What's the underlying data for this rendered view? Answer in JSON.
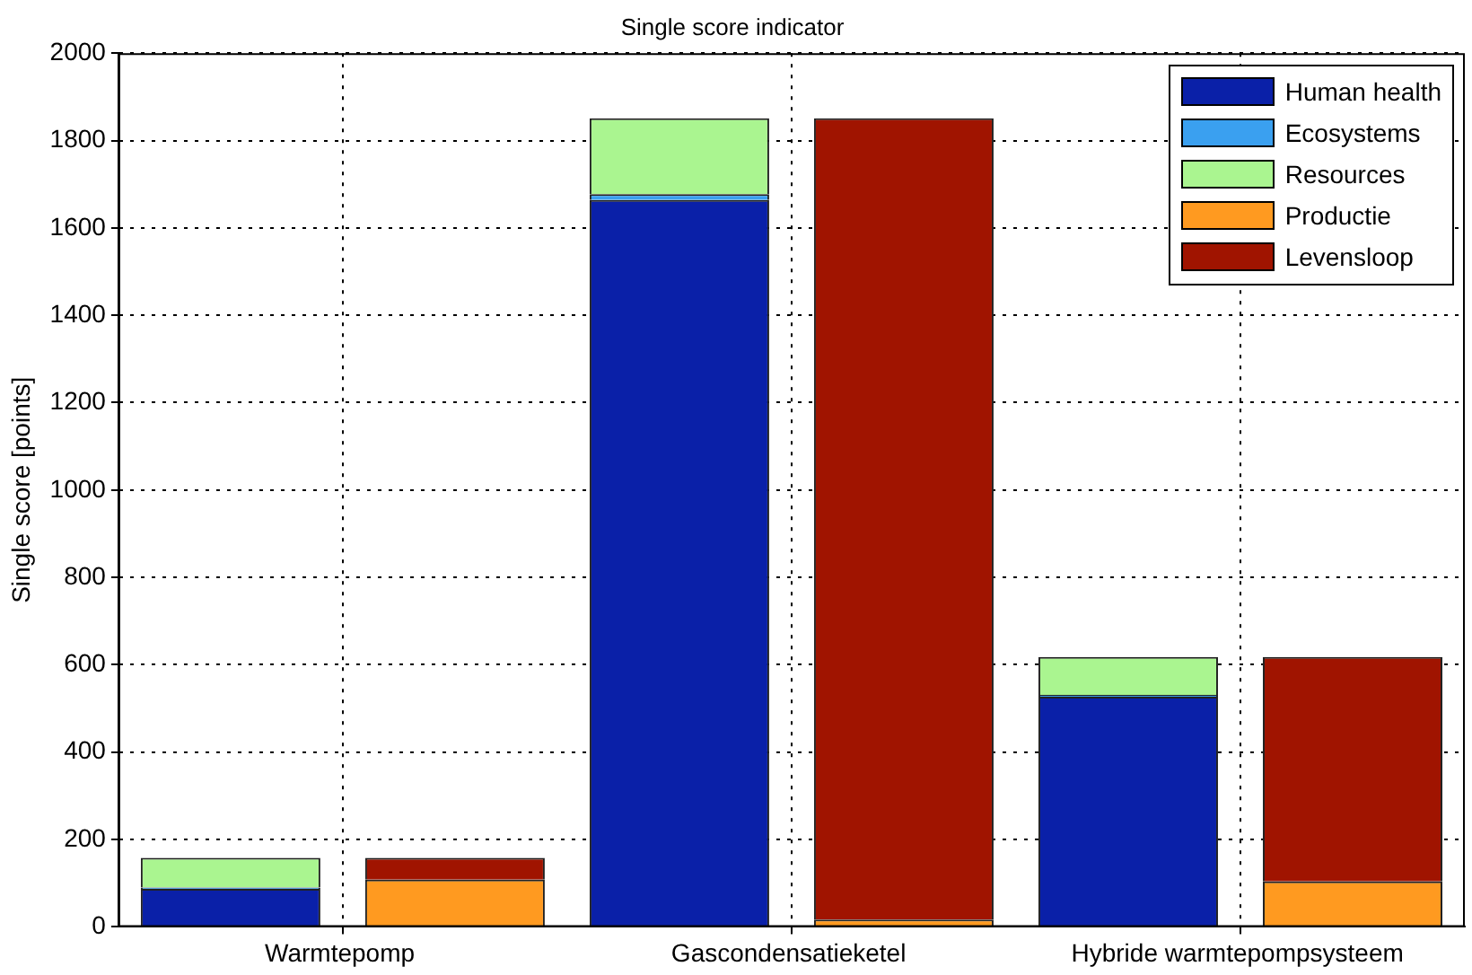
{
  "chart_data": {
    "type": "bar",
    "stacked": true,
    "title": "Single score indicator",
    "ylabel": "Single score [points]",
    "categories": [
      "Warmtepomp",
      null,
      "Gascondensatieketel",
      null,
      "Hybride warmtepompsysteem",
      null
    ],
    "ylim": [
      0,
      2000
    ],
    "yticks": [
      0,
      200,
      400,
      600,
      800,
      1000,
      1200,
      1400,
      1600,
      1800,
      2000
    ],
    "grid": true,
    "legend": "top right",
    "line_style": "dotted",
    "series": [
      {
        "name": "Human health",
        "color": "#0a20a8",
        "values": [
          87,
          null,
          1664,
          null,
          527,
          null
        ]
      },
      {
        "name": "Ecosystems",
        "color": "#3aa0f0",
        "values": [
          3,
          null,
          13,
          null,
          4,
          null
        ]
      },
      {
        "name": "Resources",
        "color": "#aaf590",
        "values": [
          68,
          null,
          174,
          null,
          87,
          null
        ]
      },
      {
        "name": "Productie",
        "color": "#ff9a20",
        "values": [
          null,
          108,
          null,
          17,
          null,
          104
        ]
      },
      {
        "name": "Levensloop",
        "color": "#a01400",
        "values": [
          null,
          50,
          null,
          1834,
          null,
          514
        ]
      }
    ]
  }
}
